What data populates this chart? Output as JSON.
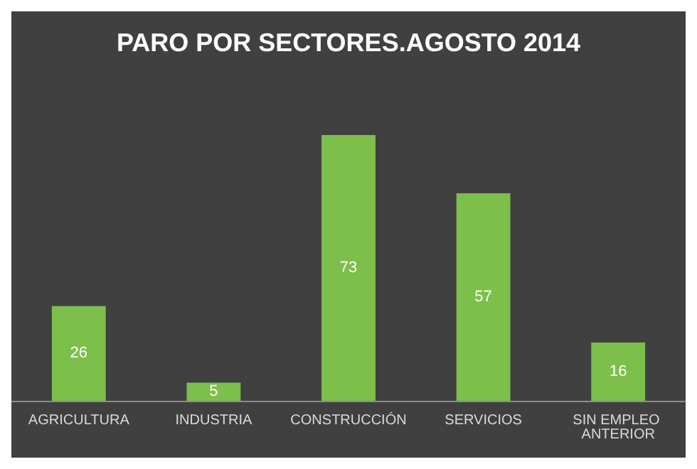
{
  "chart_data": {
    "type": "bar",
    "title": "PARO POR SECTORES.AGOSTO 2014",
    "categories": [
      "AGRICULTURA",
      "INDUSTRIA",
      "CONSTRUCCIÓN",
      "SERVICIOS",
      "SIN EMPLEO ANTERIOR"
    ],
    "values": [
      26,
      5,
      73,
      57,
      16
    ],
    "color": "#7cbf4a",
    "data_labels": true
  }
}
